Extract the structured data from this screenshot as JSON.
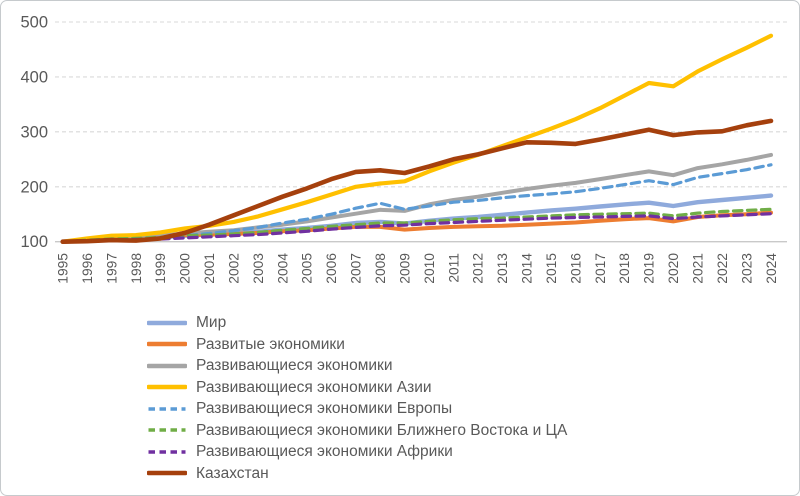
{
  "frame": {
    "background": "#ffffff",
    "border_color": "#c6cacd"
  },
  "axis": {
    "tick_color": "#595959",
    "grid_color": "#d9d9d9",
    "baseline_color": "#c9c9c9"
  },
  "chart_data": {
    "type": "line",
    "title": "",
    "xlabel": "",
    "ylabel": "",
    "ylim": [
      100,
      500
    ],
    "grid": "horizontal-dashed",
    "legend_position": "bottom-left",
    "y_ticks": [
      100,
      200,
      300,
      400,
      500
    ],
    "x": [
      "1995",
      "1996",
      "1997",
      "1998",
      "1999",
      "2000",
      "2001",
      "2002",
      "2003",
      "2004",
      "2005",
      "2006",
      "2007",
      "2008",
      "2009",
      "2010",
      "2011",
      "2012",
      "2013",
      "2014",
      "2015",
      "2016",
      "2017",
      "2018",
      "2019",
      "2020",
      "2021",
      "2022",
      "2023",
      "2024"
    ],
    "series": [
      {
        "id": "world",
        "name": "Мир",
        "color": "#8FAADC",
        "style": "solid",
        "width": 4.4,
        "values": [
          100,
          102,
          104,
          106,
          108,
          111,
          113,
          115,
          118,
          122,
          125,
          129,
          134,
          136,
          133,
          138,
          142,
          145,
          149,
          153,
          157,
          160,
          164,
          168,
          171,
          165,
          172,
          176,
          180,
          184
        ]
      },
      {
        "id": "developed",
        "name": "Развитые экономики",
        "color": "#ED7D31",
        "style": "solid",
        "width": 4.0,
        "values": [
          100,
          102,
          104,
          106,
          109,
          112,
          113,
          114,
          116,
          119,
          121,
          124,
          127,
          127,
          122,
          125,
          127,
          128,
          129,
          131,
          133,
          135,
          138,
          141,
          143,
          137,
          145,
          148,
          150,
          153
        ]
      },
      {
        "id": "emerging",
        "name": "Развивающиеся экономики",
        "color": "#A5A5A5",
        "style": "solid",
        "width": 4.0,
        "values": [
          100,
          103,
          106,
          108,
          111,
          115,
          118,
          121,
          126,
          131,
          137,
          144,
          151,
          158,
          156,
          168,
          176,
          182,
          189,
          196,
          202,
          207,
          214,
          221,
          228,
          221,
          234,
          241,
          249,
          258
        ]
      },
      {
        "id": "emerging-asia",
        "name": "Развивающиеся экономики Азии",
        "color": "#FFC000",
        "style": "solid",
        "width": 4.2,
        "values": [
          100,
          106,
          111,
          112,
          117,
          124,
          129,
          136,
          146,
          159,
          172,
          186,
          200,
          206,
          210,
          228,
          244,
          258,
          274,
          290,
          306,
          323,
          343,
          366,
          389,
          383,
          410,
          432,
          453,
          475
        ]
      },
      {
        "id": "emerging-europe",
        "name": "Развивающиеся экономики Европы",
        "color": "#5B9BD5",
        "style": "dashed",
        "width": 3.2,
        "values": [
          100,
          102,
          105,
          104,
          106,
          111,
          115,
          120,
          126,
          134,
          141,
          150,
          161,
          170,
          159,
          165,
          172,
          175,
          180,
          184,
          187,
          191,
          197,
          204,
          211,
          204,
          217,
          224,
          231,
          240
        ]
      },
      {
        "id": "emerging-me-ca",
        "name": "Развивающиеся экономики Ближнего Востока и ЦА",
        "color": "#70AD47",
        "style": "dashed",
        "width": 3.2,
        "values": [
          100,
          103,
          105,
          106,
          108,
          111,
          112,
          114,
          117,
          121,
          124,
          128,
          131,
          134,
          134,
          137,
          140,
          142,
          143,
          145,
          147,
          149,
          150,
          151,
          152,
          147,
          152,
          155,
          157,
          159
        ]
      },
      {
        "id": "emerging-africa",
        "name": "Развивающиеся экономики Африки",
        "color": "#7030A0",
        "style": "dashed",
        "width": 3.2,
        "values": [
          100,
          101,
          103,
          104,
          105,
          107,
          109,
          111,
          113,
          116,
          119,
          123,
          126,
          129,
          130,
          133,
          135,
          137,
          139,
          141,
          143,
          144,
          145,
          146,
          147,
          142,
          145,
          147,
          149,
          151
        ]
      },
      {
        "id": "kazakhstan",
        "name": "Казахстан",
        "color": "#A5400D",
        "style": "solid",
        "width": 4.6,
        "values": [
          100,
          101,
          103,
          102,
          106,
          116,
          131,
          148,
          165,
          182,
          197,
          214,
          227,
          230,
          225,
          237,
          250,
          259,
          270,
          281,
          280,
          278,
          286,
          295,
          304,
          294,
          299,
          301,
          312,
          320
        ]
      }
    ]
  }
}
